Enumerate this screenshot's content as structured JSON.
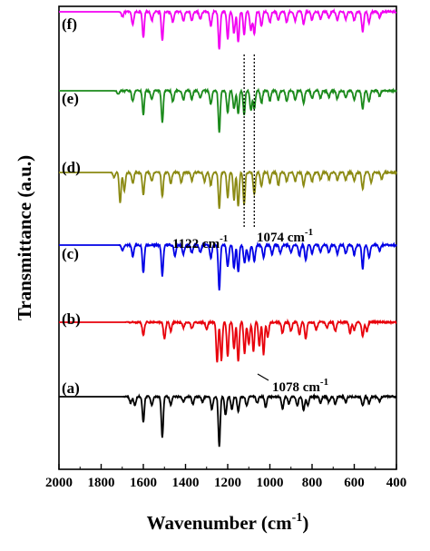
{
  "chart_data": {
    "type": "line",
    "title": "",
    "xlabel": "Wavenumber",
    "xlabel_unit": "(cm",
    "xlabel_unit_exp": "-1",
    "xlabel_unit_close": ")",
    "ylabel": "Transmittance (a.u.)",
    "xlim": [
      2000,
      400
    ],
    "x_reversed": true,
    "x_ticks": [
      "2000",
      "1800",
      "1600",
      "1400",
      "1200",
      "1000",
      "800",
      "600",
      "400"
    ],
    "y_ticks_shown": false,
    "grid": false,
    "series_labels": [
      "(a)",
      "(b)",
      "(c)",
      "(d)",
      "(e)",
      "(f)"
    ],
    "series": [
      {
        "label": "(a)",
        "color": "#000000",
        "baseline": 0,
        "onset": 1700,
        "noise": 0.9,
        "peaks": [
          [
            1660,
            7
          ],
          [
            1640,
            10
          ],
          [
            1600,
            28
          ],
          [
            1560,
            9
          ],
          [
            1510,
            45
          ],
          [
            1470,
            9
          ],
          [
            1410,
            6
          ],
          [
            1365,
            8
          ],
          [
            1320,
            6
          ],
          [
            1275,
            14
          ],
          [
            1240,
            55
          ],
          [
            1210,
            20
          ],
          [
            1180,
            14
          ],
          [
            1150,
            16
          ],
          [
            1110,
            10
          ],
          [
            1060,
            7
          ],
          [
            1020,
            12
          ],
          [
            940,
            14
          ],
          [
            910,
            8
          ],
          [
            870,
            10
          ],
          [
            840,
            15
          ],
          [
            820,
            10
          ],
          [
            760,
            7
          ],
          [
            720,
            6
          ],
          [
            690,
            8
          ],
          [
            640,
            6
          ],
          [
            560,
            10
          ],
          [
            530,
            7
          ],
          [
            480,
            5
          ]
        ]
      },
      {
        "label": "(b)",
        "color": "#e8000b",
        "baseline": 0,
        "onset": 1690,
        "noise": 1.0,
        "peaks": [
          [
            1600,
            14
          ],
          [
            1500,
            18
          ],
          [
            1470,
            10
          ],
          [
            1410,
            6
          ],
          [
            1370,
            7
          ],
          [
            1300,
            8
          ],
          [
            1250,
            45
          ],
          [
            1230,
            42
          ],
          [
            1200,
            38
          ],
          [
            1170,
            30
          ],
          [
            1150,
            44
          ],
          [
            1120,
            35
          ],
          [
            1100,
            24
          ],
          [
            1078,
            32
          ],
          [
            1050,
            26
          ],
          [
            1030,
            36
          ],
          [
            1010,
            16
          ],
          [
            940,
            12
          ],
          [
            900,
            10
          ],
          [
            860,
            14
          ],
          [
            830,
            18
          ],
          [
            780,
            8
          ],
          [
            730,
            6
          ],
          [
            690,
            10
          ],
          [
            620,
            12
          ],
          [
            600,
            9
          ],
          [
            560,
            16
          ],
          [
            540,
            10
          ]
        ]
      },
      {
        "label": "(c)",
        "color": "#0000e6",
        "baseline": 0,
        "onset": 1720,
        "noise": 1.0,
        "peaks": [
          [
            1700,
            8
          ],
          [
            1650,
            12
          ],
          [
            1600,
            30
          ],
          [
            1510,
            34
          ],
          [
            1450,
            12
          ],
          [
            1410,
            10
          ],
          [
            1370,
            9
          ],
          [
            1330,
            8
          ],
          [
            1280,
            14
          ],
          [
            1240,
            50
          ],
          [
            1200,
            24
          ],
          [
            1170,
            26
          ],
          [
            1150,
            30
          ],
          [
            1120,
            20
          ],
          [
            1100,
            17
          ],
          [
            1074,
            18
          ],
          [
            1030,
            14
          ],
          [
            990,
            10
          ],
          [
            950,
            9
          ],
          [
            900,
            8
          ],
          [
            860,
            12
          ],
          [
            830,
            16
          ],
          [
            800,
            9
          ],
          [
            760,
            7
          ],
          [
            720,
            8
          ],
          [
            680,
            10
          ],
          [
            640,
            9
          ],
          [
            600,
            11
          ],
          [
            560,
            26
          ],
          [
            530,
            14
          ],
          [
            480,
            6
          ]
        ]
      },
      {
        "label": "(d)",
        "color": "#8b8a13",
        "baseline": 0,
        "onset": 1760,
        "noise": 1.0,
        "peaks": [
          [
            1740,
            8
          ],
          [
            1710,
            34
          ],
          [
            1690,
            20
          ],
          [
            1650,
            12
          ],
          [
            1600,
            24
          ],
          [
            1560,
            10
          ],
          [
            1510,
            27
          ],
          [
            1470,
            12
          ],
          [
            1420,
            11
          ],
          [
            1370,
            9
          ],
          [
            1310,
            10
          ],
          [
            1280,
            14
          ],
          [
            1240,
            40
          ],
          [
            1200,
            28
          ],
          [
            1170,
            30
          ],
          [
            1150,
            38
          ],
          [
            1122,
            36
          ],
          [
            1074,
            24
          ],
          [
            1040,
            16
          ],
          [
            1000,
            12
          ],
          [
            960,
            14
          ],
          [
            920,
            10
          ],
          [
            880,
            10
          ],
          [
            840,
            14
          ],
          [
            800,
            10
          ],
          [
            760,
            8
          ],
          [
            720,
            7
          ],
          [
            680,
            8
          ],
          [
            640,
            8
          ],
          [
            600,
            9
          ],
          [
            560,
            18
          ],
          [
            520,
            11
          ],
          [
            470,
            7
          ]
        ]
      },
      {
        "label": "(e)",
        "color": "#1b8a1b",
        "baseline": 0,
        "onset": 1740,
        "noise": 1.0,
        "peaks": [
          [
            1720,
            6
          ],
          [
            1650,
            12
          ],
          [
            1600,
            27
          ],
          [
            1560,
            10
          ],
          [
            1510,
            35
          ],
          [
            1460,
            12
          ],
          [
            1410,
            10
          ],
          [
            1370,
            9
          ],
          [
            1330,
            8
          ],
          [
            1280,
            15
          ],
          [
            1240,
            46
          ],
          [
            1200,
            24
          ],
          [
            1170,
            20
          ],
          [
            1150,
            26
          ],
          [
            1122,
            26
          ],
          [
            1090,
            22
          ],
          [
            1074,
            20
          ],
          [
            1040,
            14
          ],
          [
            1000,
            11
          ],
          [
            960,
            10
          ],
          [
            920,
            12
          ],
          [
            880,
            10
          ],
          [
            840,
            14
          ],
          [
            800,
            9
          ],
          [
            760,
            8
          ],
          [
            720,
            7
          ],
          [
            680,
            9
          ],
          [
            640,
            8
          ],
          [
            600,
            10
          ],
          [
            560,
            20
          ],
          [
            530,
            12
          ],
          [
            480,
            6
          ]
        ]
      },
      {
        "label": "(f)",
        "color": "#f200f2",
        "baseline": 0,
        "onset": 1720,
        "noise": 1.0,
        "peaks": [
          [
            1700,
            8
          ],
          [
            1650,
            14
          ],
          [
            1600,
            28
          ],
          [
            1560,
            10
          ],
          [
            1510,
            32
          ],
          [
            1460,
            12
          ],
          [
            1410,
            10
          ],
          [
            1370,
            9
          ],
          [
            1330,
            8
          ],
          [
            1280,
            16
          ],
          [
            1240,
            42
          ],
          [
            1200,
            30
          ],
          [
            1170,
            24
          ],
          [
            1150,
            34
          ],
          [
            1122,
            26
          ],
          [
            1090,
            20
          ],
          [
            1074,
            24
          ],
          [
            1040,
            16
          ],
          [
            1000,
            12
          ],
          [
            960,
            10
          ],
          [
            920,
            12
          ],
          [
            880,
            10
          ],
          [
            840,
            14
          ],
          [
            800,
            9
          ],
          [
            760,
            8
          ],
          [
            720,
            7
          ],
          [
            680,
            9
          ],
          [
            640,
            8
          ],
          [
            600,
            10
          ],
          [
            560,
            22
          ],
          [
            530,
            12
          ],
          [
            480,
            6
          ]
        ]
      }
    ],
    "annotations": [
      {
        "text": "1078 cm",
        "exp": "-1"
      },
      {
        "text": "1122 cm",
        "exp": "-1"
      },
      {
        "text": "1074 cm",
        "exp": "-1"
      }
    ],
    "reference_lines": [
      1122,
      1074
    ]
  }
}
